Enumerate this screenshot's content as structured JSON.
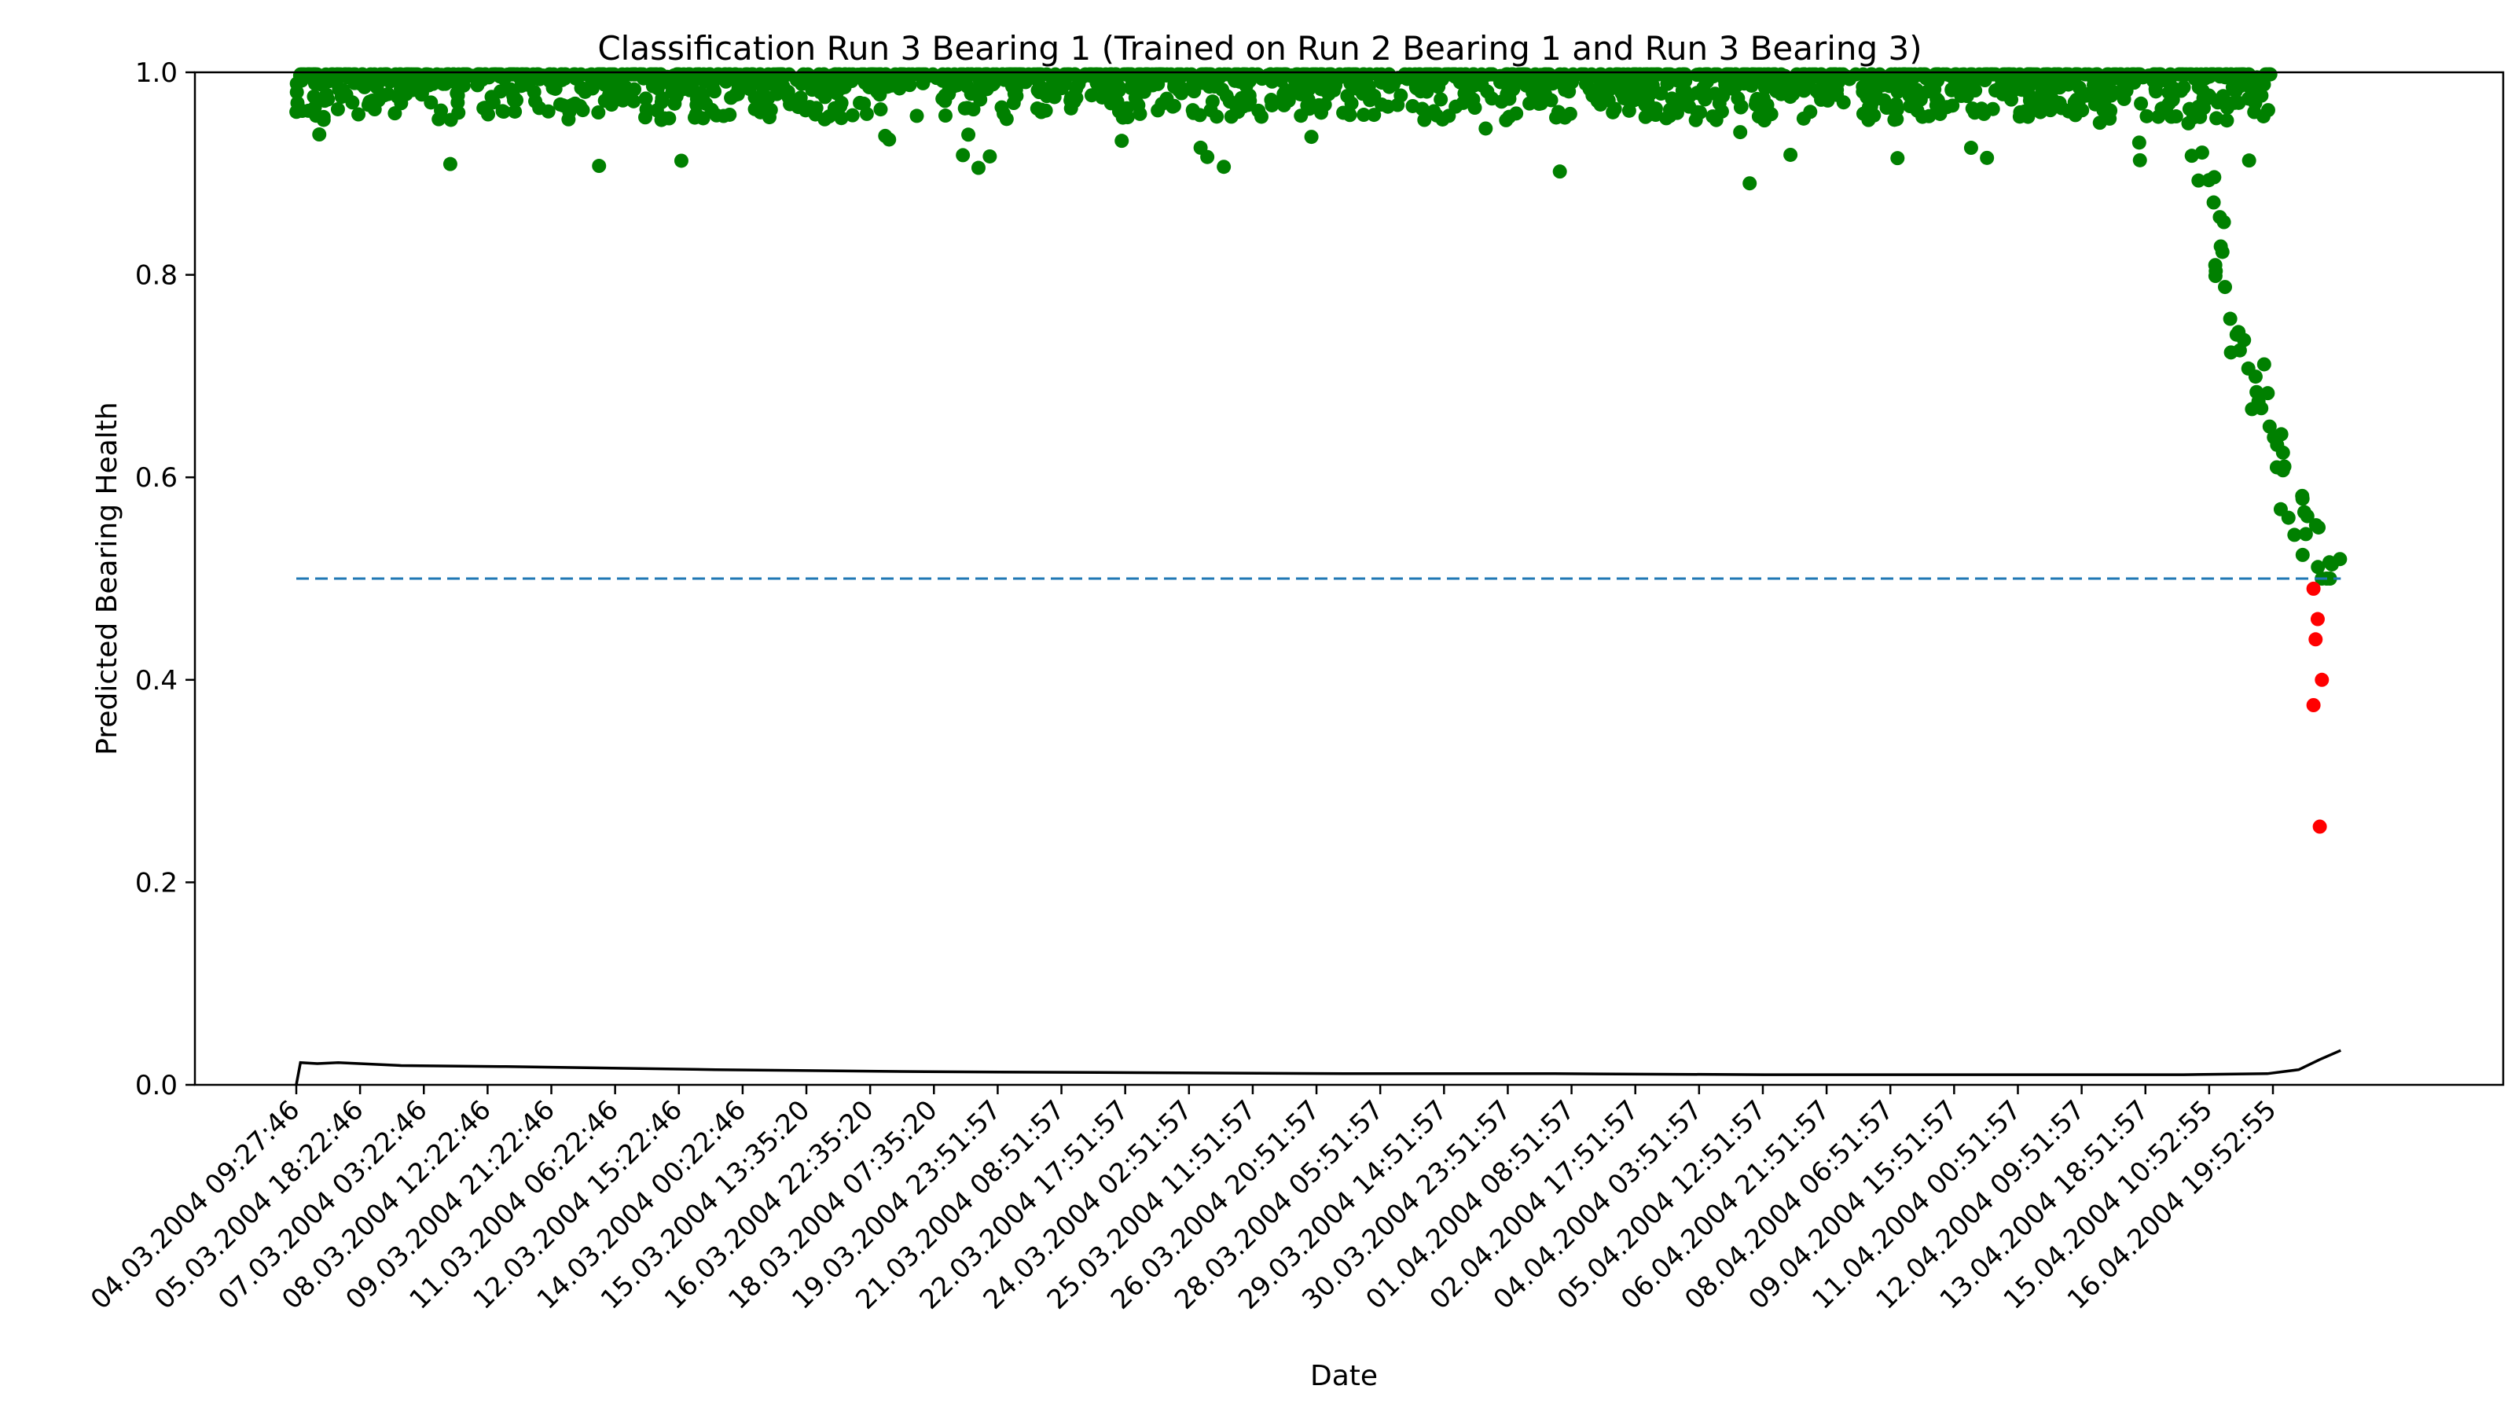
{
  "chart_data": {
    "type": "scatter",
    "title": "Classification Run 3 Bearing 1 (Trained on Run 2 Bearing 1 and Run 3 Bearing 3)",
    "xlabel": "Date",
    "ylabel": "Predicted Bearing Health",
    "ylim": [
      0.0,
      1.0
    ],
    "y_ticks": [
      "0.0",
      "0.2",
      "0.4",
      "0.6",
      "0.8",
      "1.0"
    ],
    "x_ticks": [
      "04.03.2004 09:27:46",
      "05.03.2004 18:22:46",
      "07.03.2004 03:22:46",
      "08.03.2004 12:22:46",
      "09.03.2004 21:22:46",
      "11.03.2004 06:22:46",
      "12.03.2004 15:22:46",
      "14.03.2004 00:22:46",
      "15.03.2004 13:35:20",
      "16.03.2004 22:35:20",
      "18.03.2004 07:35:20",
      "19.03.2004 23:51:57",
      "21.03.2004 08:51:57",
      "22.03.2004 17:51:57",
      "24.03.2004 02:51:57",
      "25.03.2004 11:51:57",
      "26.03.2004 20:51:57",
      "28.03.2004 05:51:57",
      "29.03.2004 14:51:57",
      "30.03.2004 23:51:57",
      "01.04.2004 08:51:57",
      "02.04.2004 17:51:57",
      "04.04.2004 03:51:57",
      "05.04.2004 12:51:57",
      "06.04.2004 21:51:57",
      "08.04.2004 06:51:57",
      "09.04.2004 15:51:57",
      "11.04.2004 00:51:57",
      "12.04.2004 09:51:57",
      "13.04.2004 18:51:57",
      "15.04.2004 10:52:55",
      "16.04.2004 19:52:55"
    ],
    "threshold": 0.5,
    "grid": false,
    "series": [
      {
        "color": "#008000",
        "description": "healthy predictions (above threshold), dense band near 0.95-1.0 until mid-April, then spread down toward 0.5",
        "healthy_band": [
          0.95,
          1.0
        ],
        "late_degradation": [
          [
            0.905,
            0.93
          ],
          [
            0.91,
            0.87
          ],
          [
            0.915,
            0.82
          ],
          [
            0.92,
            0.79
          ],
          [
            0.925,
            0.76
          ],
          [
            0.93,
            0.73
          ],
          [
            0.935,
            0.7
          ],
          [
            0.94,
            0.66
          ],
          [
            0.945,
            0.62
          ],
          [
            0.95,
            0.6
          ],
          [
            0.955,
            0.57
          ],
          [
            0.96,
            0.54
          ],
          [
            0.965,
            0.52
          ],
          [
            0.97,
            0.505
          ]
        ]
      },
      {
        "color": "#ff0000",
        "description": "failed predictions (below threshold)",
        "points": [
          [
            0.962,
            0.49
          ],
          [
            0.964,
            0.46
          ],
          [
            0.963,
            0.44
          ],
          [
            0.966,
            0.4
          ],
          [
            0.962,
            0.375
          ],
          [
            0.965,
            0.255
          ]
        ]
      },
      {
        "color": "#000000",
        "description": "running uncertainty line",
        "points": [
          [
            0.0,
            0.0
          ],
          [
            0.002,
            0.022
          ],
          [
            0.01,
            0.021
          ],
          [
            0.02,
            0.022
          ],
          [
            0.05,
            0.019
          ],
          [
            0.1,
            0.018
          ],
          [
            0.2,
            0.015
          ],
          [
            0.3,
            0.013
          ],
          [
            0.4,
            0.012
          ],
          [
            0.5,
            0.011
          ],
          [
            0.6,
            0.011
          ],
          [
            0.7,
            0.01
          ],
          [
            0.8,
            0.01
          ],
          [
            0.9,
            0.01
          ],
          [
            0.94,
            0.011
          ],
          [
            0.955,
            0.015
          ],
          [
            0.965,
            0.025
          ],
          [
            0.975,
            0.034
          ]
        ]
      }
    ]
  }
}
